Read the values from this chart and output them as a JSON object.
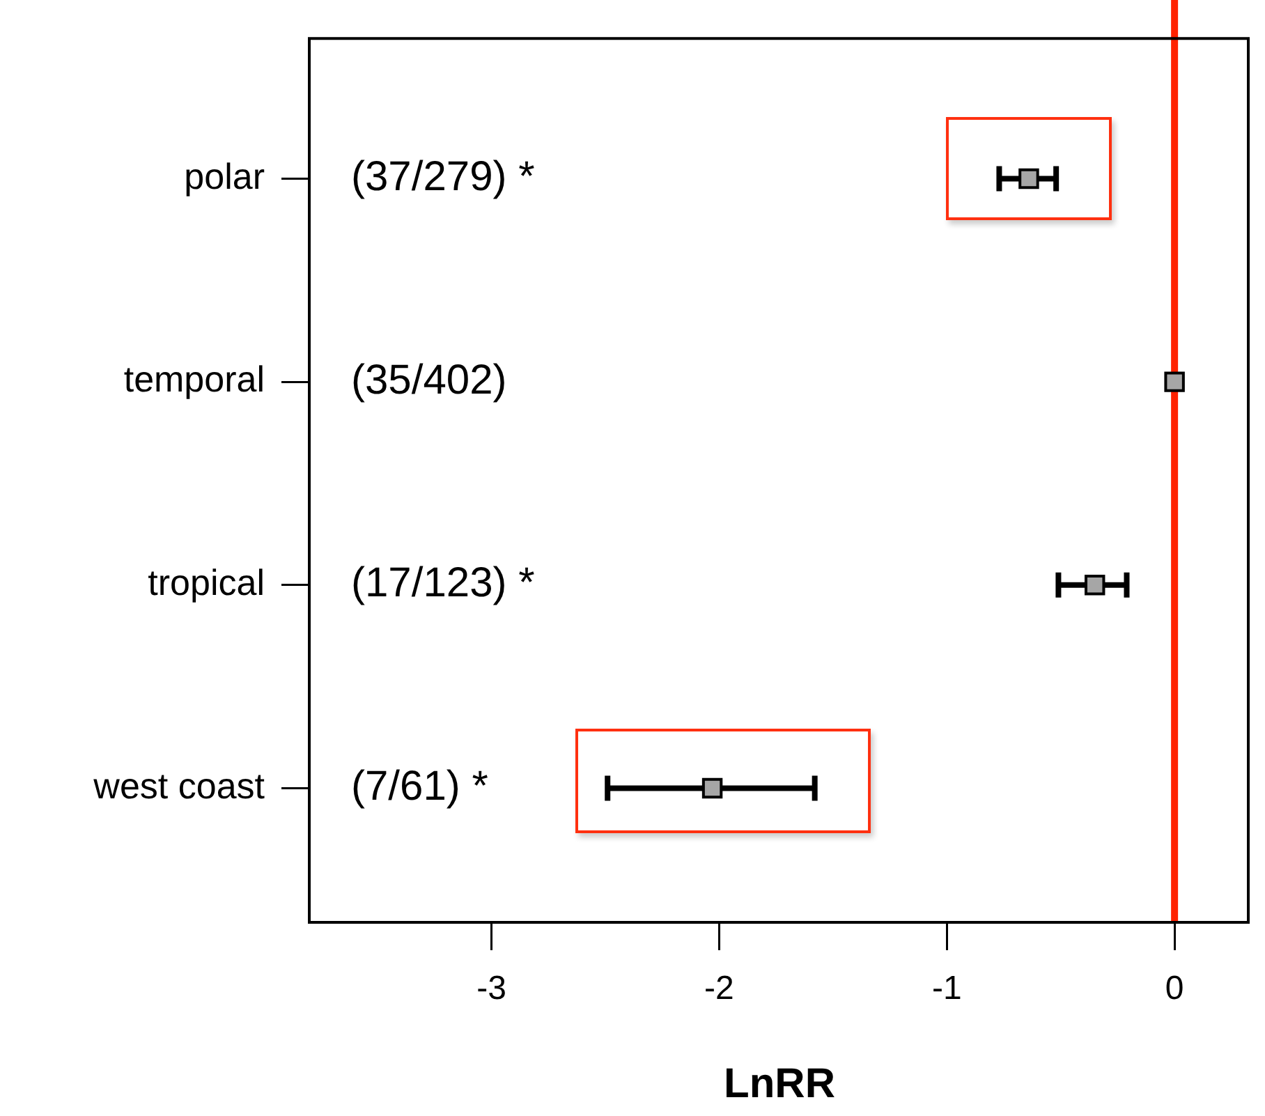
{
  "chart_data": {
    "type": "scatter",
    "orientation": "horizontal",
    "xlabel": "LnRR",
    "categories": [
      "polar",
      "temporal",
      "tropical",
      "west coast"
    ],
    "values": [
      -0.64,
      0.0,
      -0.35,
      -2.03
    ],
    "errors": [
      [
        -0.77,
        -0.52
      ],
      null,
      [
        -0.51,
        -0.21
      ],
      [
        -2.49,
        -1.58
      ]
    ],
    "color": "#a6a6a6",
    "marker": "square",
    "xlim": [
      -3.8,
      0.33
    ],
    "xticks": [
      -3,
      -2,
      -1,
      0
    ],
    "ref_lines": [
      {
        "axis": "x",
        "value": 0,
        "color": "#ff2200"
      }
    ],
    "annotations": [
      "(37/279) *",
      "(35/402)",
      "(17/123) *",
      "(7/61) *"
    ]
  }
}
